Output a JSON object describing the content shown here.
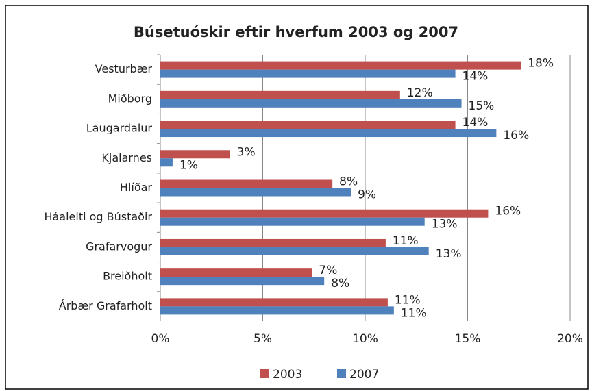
{
  "chart_data": {
    "type": "bar",
    "orientation": "horizontal",
    "title": "Búsetuóskir eftir hverfum 2003 og 2007",
    "categories": [
      "Vesturbær",
      "Miðborg",
      "Laugardalur",
      "Kjalarnes",
      "Hlíðar",
      "Háaleiti og Bústaðir",
      "Grafarvogur",
      "Breiðholt",
      "Árbær Grafarholt"
    ],
    "series": [
      {
        "name": "2003",
        "color": "#c0504d",
        "values": [
          17.6,
          11.7,
          14.4,
          3.4,
          8.4,
          16.0,
          11.0,
          7.4,
          11.1
        ],
        "value_labels": [
          "18%",
          "12%",
          "14%",
          "3%",
          "8%",
          "16%",
          "11%",
          "7%",
          "11%"
        ]
      },
      {
        "name": "2007",
        "color": "#4f81bd",
        "values": [
          14.4,
          14.7,
          16.4,
          0.6,
          9.3,
          12.9,
          13.1,
          8.0,
          11.4
        ],
        "value_labels": [
          "14%",
          "15%",
          "16%",
          "1%",
          "9%",
          "13%",
          "13%",
          "8%",
          "11%"
        ]
      }
    ],
    "xlim": [
      0,
      20
    ],
    "xticks": [
      {
        "value": 0,
        "label": "0%"
      },
      {
        "value": 5,
        "label": "5%"
      },
      {
        "value": 10,
        "label": "10%"
      },
      {
        "value": 15,
        "label": "15%"
      },
      {
        "value": 20,
        "label": "20%"
      }
    ],
    "grid": true,
    "legend": "bottom"
  }
}
